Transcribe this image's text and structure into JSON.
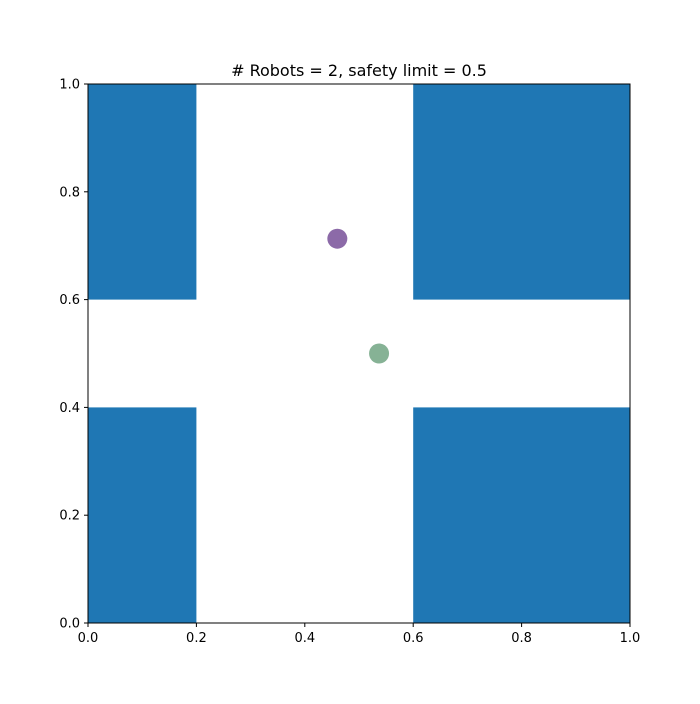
{
  "chart_data": {
    "type": "scatter",
    "title": "# Robots = 2, safety limit = 0.5",
    "xlabel": "",
    "ylabel": "",
    "xlim": [
      0.0,
      1.0
    ],
    "ylim": [
      0.0,
      1.0
    ],
    "grid": false,
    "xticks": [
      "0.0",
      "0.2",
      "0.4",
      "0.6",
      "0.8",
      "1.0"
    ],
    "yticks": [
      "0.0",
      "0.2",
      "0.4",
      "0.6",
      "0.8",
      "1.0"
    ],
    "obstacle_color": "#1f77b4",
    "obstacles": [
      {
        "name": "top-left",
        "x": [
          0.0,
          0.2
        ],
        "y": [
          0.6,
          1.0
        ]
      },
      {
        "name": "top-right",
        "x": [
          0.6,
          1.0
        ],
        "y": [
          0.6,
          1.0
        ]
      },
      {
        "name": "bottom-left",
        "x": [
          0.0,
          0.2
        ],
        "y": [
          0.0,
          0.4
        ]
      },
      {
        "name": "bottom-right",
        "x": [
          0.6,
          1.0
        ],
        "y": [
          0.0,
          0.4
        ]
      }
    ],
    "robots": [
      {
        "x": 0.46,
        "y": 0.713,
        "color": "#8c6aa8"
      },
      {
        "x": 0.537,
        "y": 0.5,
        "color": "#86b295"
      }
    ]
  }
}
